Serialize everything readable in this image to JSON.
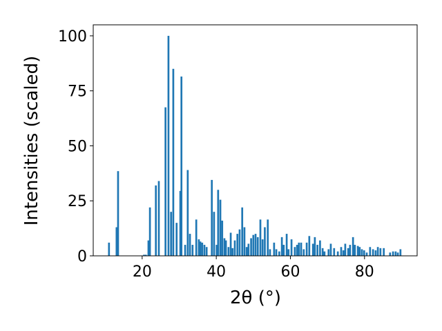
{
  "chart_data": {
    "type": "bar",
    "xlabel": "2θ (°)",
    "ylabel": "Intensities (scaled)",
    "x": [
      11.05,
      13.1,
      13.5,
      20.5,
      21.0,
      21.7,
      22.1,
      23.7,
      24.5,
      26.3,
      27.1,
      27.8,
      28.4,
      29.3,
      30.3,
      30.6,
      31.6,
      32.3,
      32.9,
      33.6,
      34.6,
      35.3,
      35.7,
      36.2,
      36.8,
      37.4,
      38.8,
      39.4,
      40.1,
      40.5,
      41.1,
      41.6,
      42.2,
      42.6,
      43.3,
      43.9,
      44.4,
      45.0,
      45.7,
      46.3,
      47.0,
      47.6,
      48.2,
      48.7,
      49.4,
      50.0,
      50.6,
      51.2,
      51.9,
      52.5,
      53.1,
      53.9,
      54.5,
      55.6,
      56.2,
      57.0,
      57.7,
      58.2,
      59.0,
      59.5,
      60.3,
      61.2,
      61.8,
      62.3,
      62.9,
      63.6,
      64.4,
      65.1,
      66.1,
      66.6,
      67.3,
      68.0,
      68.7,
      69.2,
      70.3,
      70.9,
      71.8,
      72.8,
      73.7,
      74.3,
      74.8,
      75.6,
      76.1,
      76.9,
      77.4,
      78.2,
      78.7,
      79.3,
      79.9,
      80.6,
      81.5,
      82.3,
      83.0,
      83.6,
      84.3,
      85.2,
      86.9,
      87.7,
      88.4,
      89.0,
      89.7
    ],
    "values": [
      6,
      13,
      38.5,
      0.5,
      0.5,
      7,
      22,
      32,
      34,
      67.5,
      100,
      20,
      85,
      15,
      29.5,
      81.5,
      5,
      39,
      10,
      5,
      16.5,
      7.5,
      6.5,
      6,
      5,
      4,
      34.5,
      20,
      5,
      30,
      25.5,
      16,
      8,
      7,
      4,
      10.5,
      3.5,
      7,
      10,
      12,
      22,
      13,
      4,
      5.5,
      8,
      9.5,
      10,
      8.5,
      16.5,
      7.5,
      13,
      16.5,
      3,
      6,
      3,
      2,
      8.5,
      5,
      10,
      3,
      7.5,
      4,
      5,
      6,
      6,
      3,
      6,
      9,
      5.5,
      8.5,
      5,
      7,
      3.5,
      2,
      3,
      5.5,
      3.5,
      2,
      4,
      2.5,
      5.5,
      3.5,
      5,
      8.5,
      5,
      4.5,
      4,
      3,
      2.5,
      1.5,
      4,
      3,
      2.5,
      4,
      3.5,
      3.5,
      1.5,
      2,
      2,
      1.5,
      3
    ],
    "color": "#1f77b4",
    "xlim": [
      6.8,
      94.2
    ],
    "xticks": [
      20,
      40,
      60,
      80
    ],
    "ylim": [
      0,
      105
    ],
    "yticks": [
      0,
      25,
      50,
      75,
      100
    ]
  }
}
